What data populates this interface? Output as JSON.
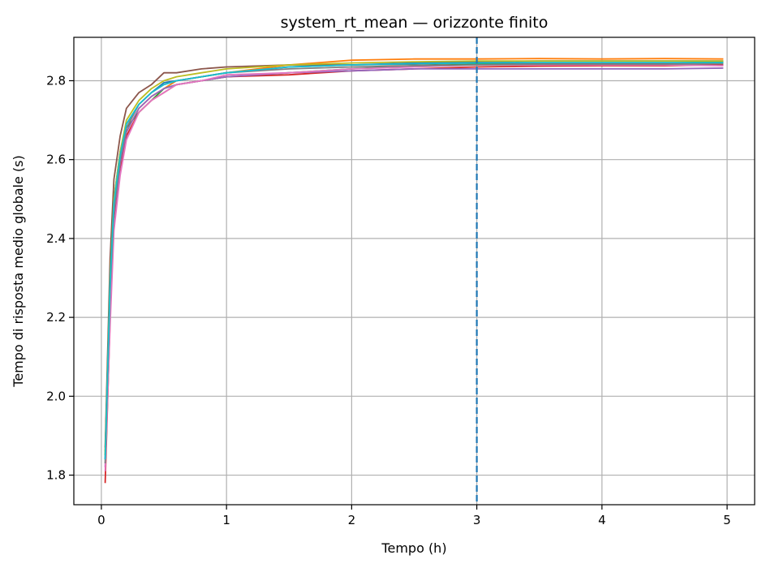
{
  "chart_data": {
    "type": "line",
    "title": "system_rt_mean — orizzonte finito",
    "xlabel": "Tempo (h)",
    "ylabel": "Tempo di risposta medio globale (s)",
    "xlim": [
      -0.22,
      5.22
    ],
    "ylim": [
      1.725,
      2.91
    ],
    "xticks": [
      0,
      1,
      2,
      3,
      4,
      5
    ],
    "xtick_labels": [
      "0",
      "1",
      "2",
      "3",
      "4",
      "5"
    ],
    "yticks": [
      1.8,
      2.0,
      2.2,
      2.4,
      2.6,
      2.8
    ],
    "ytick_labels": [
      "1.8",
      "2.0",
      "2.2",
      "2.4",
      "2.6",
      "2.8"
    ],
    "grid": true,
    "legend": "none",
    "vline": {
      "x": 3,
      "color": "#1f77b4",
      "style": "dashed"
    },
    "series": [
      {
        "color": "#1f77b4",
        "x": [
          0.03,
          0.07,
          0.1,
          0.15,
          0.2,
          0.3,
          0.4,
          0.5,
          0.6,
          0.8,
          1.0,
          1.5,
          2.0,
          2.5,
          3.0,
          3.5,
          4.0,
          4.5,
          4.97
        ],
        "values": [
          1.84,
          2.3,
          2.5,
          2.62,
          2.69,
          2.74,
          2.77,
          2.795,
          2.8,
          2.81,
          2.82,
          2.835,
          2.84,
          2.845,
          2.848,
          2.85,
          2.85,
          2.85,
          2.85
        ]
      },
      {
        "color": "#ff7f0e",
        "x": [
          0.03,
          0.07,
          0.1,
          0.15,
          0.2,
          0.3,
          0.4,
          0.5,
          0.6,
          0.8,
          1.0,
          1.5,
          2.0,
          2.5,
          3.0,
          3.5,
          4.0,
          4.5,
          4.97
        ],
        "values": [
          1.86,
          2.28,
          2.48,
          2.6,
          2.67,
          2.73,
          2.76,
          2.78,
          2.8,
          2.81,
          2.82,
          2.84,
          2.852,
          2.855,
          2.855,
          2.856,
          2.855,
          2.856,
          2.855
        ]
      },
      {
        "color": "#2ca02c",
        "x": [
          0.03,
          0.07,
          0.1,
          0.15,
          0.2,
          0.3,
          0.4,
          0.5,
          0.6,
          0.8,
          1.0,
          1.5,
          2.0,
          2.5,
          3.0,
          3.5,
          4.0,
          4.5,
          4.97
        ],
        "values": [
          1.85,
          2.32,
          2.49,
          2.61,
          2.68,
          2.72,
          2.75,
          2.78,
          2.79,
          2.8,
          2.81,
          2.82,
          2.83,
          2.838,
          2.842,
          2.845,
          2.845,
          2.845,
          2.848
        ]
      },
      {
        "color": "#d62728",
        "x": [
          0.03,
          0.07,
          0.1,
          0.15,
          0.2,
          0.3,
          0.4,
          0.5,
          0.6,
          0.8,
          1.0,
          1.5,
          2.0,
          2.5,
          3.0,
          3.5,
          4.0,
          4.5,
          4.97
        ],
        "values": [
          1.78,
          2.2,
          2.45,
          2.58,
          2.66,
          2.72,
          2.75,
          2.77,
          2.79,
          2.8,
          2.81,
          2.815,
          2.825,
          2.83,
          2.835,
          2.837,
          2.838,
          2.838,
          2.84
        ]
      },
      {
        "color": "#9467bd",
        "x": [
          0.03,
          0.07,
          0.1,
          0.15,
          0.2,
          0.3,
          0.4,
          0.5,
          0.6,
          0.8,
          1.0,
          1.5,
          2.0,
          2.5,
          3.0,
          3.5,
          4.0,
          4.5,
          4.97
        ],
        "values": [
          1.82,
          2.25,
          2.46,
          2.59,
          2.67,
          2.73,
          2.76,
          2.78,
          2.79,
          2.8,
          2.81,
          2.82,
          2.825,
          2.83,
          2.83,
          2.83,
          2.83,
          2.83,
          2.832
        ]
      },
      {
        "color": "#8c564b",
        "x": [
          0.03,
          0.07,
          0.1,
          0.15,
          0.2,
          0.3,
          0.4,
          0.5,
          0.6,
          0.8,
          1.0,
          1.5,
          2.0,
          2.5,
          3.0,
          3.5,
          4.0,
          4.5,
          4.97
        ],
        "values": [
          1.87,
          2.35,
          2.55,
          2.66,
          2.73,
          2.77,
          2.79,
          2.82,
          2.82,
          2.83,
          2.835,
          2.84,
          2.84,
          2.842,
          2.845,
          2.845,
          2.845,
          2.845,
          2.845
        ]
      },
      {
        "color": "#e377c2",
        "x": [
          0.03,
          0.07,
          0.1,
          0.15,
          0.2,
          0.3,
          0.4,
          0.5,
          0.6,
          0.8,
          1.0,
          1.5,
          2.0,
          2.5,
          3.0,
          3.5,
          4.0,
          4.5,
          4.97
        ],
        "values": [
          1.81,
          2.18,
          2.42,
          2.56,
          2.65,
          2.72,
          2.75,
          2.77,
          2.79,
          2.8,
          2.815,
          2.82,
          2.83,
          2.835,
          2.84,
          2.84,
          2.84,
          2.84,
          2.838
        ]
      },
      {
        "color": "#7f7f7f",
        "x": [
          0.03,
          0.07,
          0.1,
          0.15,
          0.2,
          0.3,
          0.4,
          0.5,
          0.6,
          0.8,
          1.0,
          1.5,
          2.0,
          2.5,
          3.0,
          3.5,
          4.0,
          4.5,
          4.97
        ],
        "values": [
          1.83,
          2.27,
          2.47,
          2.6,
          2.68,
          2.74,
          2.77,
          2.79,
          2.8,
          2.81,
          2.82,
          2.83,
          2.835,
          2.838,
          2.84,
          2.842,
          2.842,
          2.842,
          2.843
        ]
      },
      {
        "color": "#bcbd22",
        "x": [
          0.03,
          0.07,
          0.1,
          0.15,
          0.2,
          0.3,
          0.4,
          0.5,
          0.6,
          0.8,
          1.0,
          1.5,
          2.0,
          2.5,
          3.0,
          3.5,
          4.0,
          4.5,
          4.97
        ],
        "values": [
          1.85,
          2.3,
          2.5,
          2.62,
          2.7,
          2.75,
          2.78,
          2.8,
          2.81,
          2.82,
          2.83,
          2.84,
          2.845,
          2.848,
          2.85,
          2.85,
          2.85,
          2.85,
          2.85
        ]
      },
      {
        "color": "#17becf",
        "x": [
          0.03,
          0.07,
          0.1,
          0.15,
          0.2,
          0.3,
          0.4,
          0.5,
          0.6,
          0.8,
          1.0,
          1.5,
          2.0,
          2.5,
          3.0,
          3.5,
          4.0,
          4.5,
          4.97
        ],
        "values": [
          1.84,
          2.29,
          2.49,
          2.61,
          2.69,
          2.74,
          2.77,
          2.79,
          2.8,
          2.81,
          2.82,
          2.835,
          2.84,
          2.843,
          2.845,
          2.846,
          2.846,
          2.846,
          2.846
        ]
      }
    ]
  }
}
